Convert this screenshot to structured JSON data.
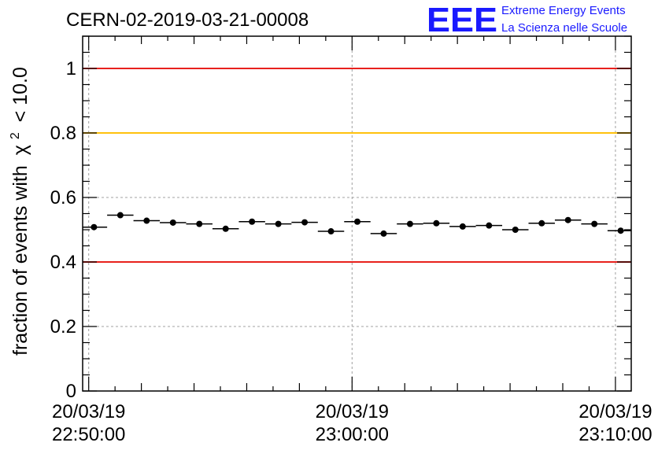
{
  "chart_data": {
    "type": "scatter",
    "title": "CERN-02-2019-03-21-00008",
    "ylabel": "fraction of events with",
    "ylabel_symbol": "χ",
    "ylabel_superscript": "2",
    "ylabel_suffix": "< 10.0",
    "xlabel": "",
    "ylim": [
      0,
      1.1
    ],
    "xlim_minutes": [
      -0.23,
      20.6
    ],
    "yticks": [
      {
        "value": 0,
        "label": "0"
      },
      {
        "value": 0.2,
        "label": "0.2"
      },
      {
        "value": 0.4,
        "label": "0.4"
      },
      {
        "value": 0.6,
        "label": "0.6"
      },
      {
        "value": 0.8,
        "label": "0.8"
      },
      {
        "value": 1,
        "label": "1"
      }
    ],
    "xticks": [
      {
        "minutes": 0,
        "date": "20/03/19",
        "time": "22:50:00"
      },
      {
        "minutes": 10,
        "date": "20/03/19",
        "time": "23:00:00"
      },
      {
        "minutes": 20,
        "date": "20/03/19",
        "time": "23:10:00"
      }
    ],
    "grid": true,
    "reference_lines": [
      {
        "y": 1.0,
        "color": "#e8211d"
      },
      {
        "y": 0.8,
        "color": "#ffc20e"
      },
      {
        "y": 0.4,
        "color": "#e8211d"
      }
    ],
    "series": [
      {
        "marker": "circle",
        "color": "#000000",
        "x_minutes": [
          0.2,
          1.2,
          2.2,
          3.2,
          4.2,
          5.2,
          6.2,
          7.2,
          8.2,
          9.2,
          10.2,
          11.2,
          12.2,
          13.2,
          14.2,
          15.2,
          16.2,
          17.2,
          18.2,
          19.2,
          20.2
        ],
        "values": [
          0.508,
          0.545,
          0.528,
          0.522,
          0.518,
          0.503,
          0.525,
          0.518,
          0.523,
          0.495,
          0.525,
          0.488,
          0.518,
          0.52,
          0.51,
          0.513,
          0.5,
          0.52,
          0.53,
          0.518,
          0.497
        ],
        "bin_half_width_minutes": 0.5
      }
    ]
  },
  "logo": {
    "mark": "EEE",
    "line1": "Extreme Energy Events",
    "line2": "La Scienza nelle Scuole",
    "color": "#1a1aff"
  }
}
